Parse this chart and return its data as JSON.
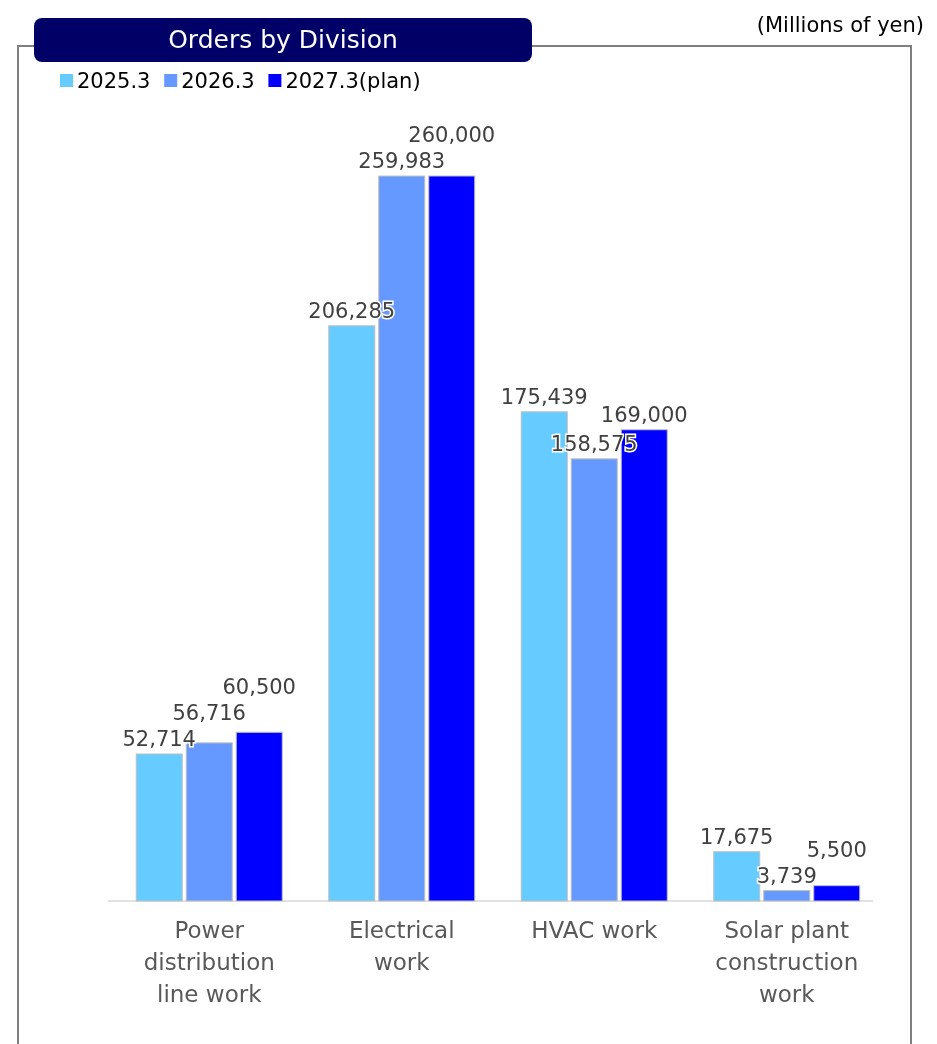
{
  "chart_data": {
    "type": "bar",
    "title": "Orders by Division",
    "annotations": [
      "(Millions of yen)"
    ],
    "categories": [
      "Power distribution line work",
      "Electrical work",
      "HVAC work",
      "Solar plant construction work"
    ],
    "series": [
      {
        "name": "2025.3",
        "color": "#66ccff",
        "values": [
          52714,
          206285,
          175439,
          17675
        ],
        "value_labels": [
          "52,714",
          "206,285",
          "175,439",
          "17,675"
        ]
      },
      {
        "name": "2026.3",
        "color": "#6699ff",
        "values": [
          56716,
          259983,
          158575,
          3739
        ],
        "value_labels": [
          "56,716",
          "259,983",
          "158,575",
          "3,739"
        ]
      },
      {
        "name": "2027.3(plan)",
        "color": "#0000ff",
        "values": [
          60500,
          260000,
          169000,
          5500
        ],
        "value_labels": [
          "60,500",
          "260,000",
          "169,000",
          "5,500"
        ]
      }
    ],
    "legend": "top left"
  }
}
